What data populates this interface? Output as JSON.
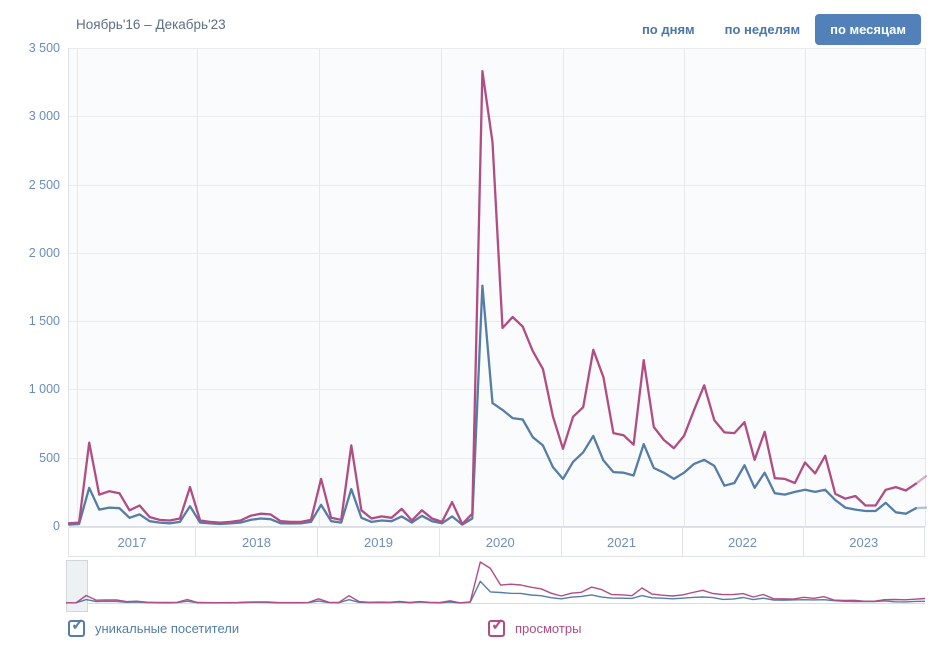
{
  "header": {
    "date_range": "Ноябрь'16 – Декабрь'23",
    "tabs": [
      {
        "label": "по дням",
        "active": false
      },
      {
        "label": "по неделям",
        "active": false
      },
      {
        "label": "по месяцам",
        "active": true
      }
    ]
  },
  "colors": {
    "visitors_line": "#567da7",
    "views_line": "#b04d84",
    "active_tab_bg": "#5181b8",
    "tab_text": "#4a76a8",
    "axis_label": "#6e8fbd",
    "grid_line": "#e9ebef",
    "plot_background": "#fafbfc"
  },
  "legend": {
    "items": [
      {
        "label": "уникальные посетители",
        "checked": true,
        "color": "#567da7"
      },
      {
        "label": "просмотры",
        "checked": true,
        "color": "#b04d84"
      }
    ]
  },
  "chart_data": {
    "type": "line",
    "title": "Ноябрь'16 – Декабрь'23",
    "x_unit": "month",
    "xlabel": "",
    "ylabel": "",
    "ylim": [
      0,
      3500
    ],
    "grid": true,
    "legend_position": "bottom",
    "y_tick_labels_top_to_bottom": [
      "3 500",
      "3 000",
      "2 500",
      "2 000",
      "1 500",
      "1 000",
      "500",
      "0"
    ],
    "x_tick_labels": [
      "2017",
      "2018",
      "2019",
      "2020",
      "2021",
      "2022",
      "2023"
    ],
    "x": [
      "11.2016",
      "12.2016",
      "01.2017",
      "02.2017",
      "03.2017",
      "04.2017",
      "05.2017",
      "06.2017",
      "07.2017",
      "08.2017",
      "09.2017",
      "10.2017",
      "11.2017",
      "12.2017",
      "01.2018",
      "02.2018",
      "03.2018",
      "04.2018",
      "05.2018",
      "06.2018",
      "07.2018",
      "08.2018",
      "09.2018",
      "10.2018",
      "11.2018",
      "12.2018",
      "01.2019",
      "02.2019",
      "03.2019",
      "04.2019",
      "05.2019",
      "06.2019",
      "07.2019",
      "08.2019",
      "09.2019",
      "10.2019",
      "11.2019",
      "12.2019",
      "01.2020",
      "02.2020",
      "03.2020",
      "04.2020",
      "05.2020",
      "06.2020",
      "07.2020",
      "08.2020",
      "09.2020",
      "10.2020",
      "11.2020",
      "12.2020",
      "01.2021",
      "02.2021",
      "03.2021",
      "04.2021",
      "05.2021",
      "06.2021",
      "07.2021",
      "08.2021",
      "09.2021",
      "10.2021",
      "11.2021",
      "12.2021",
      "01.2022",
      "02.2022",
      "03.2022",
      "04.2022",
      "05.2022",
      "06.2022",
      "07.2022",
      "08.2022",
      "09.2022",
      "10.2022",
      "11.2022",
      "12.2022",
      "01.2023",
      "02.2023",
      "03.2023",
      "04.2023",
      "05.2023",
      "06.2023",
      "07.2023",
      "08.2023",
      "09.2023",
      "10.2023",
      "11.2023",
      "12.2023"
    ],
    "series": [
      {
        "name": "уникальные посетители",
        "color": "#567da7",
        "values": [
          10,
          15,
          280,
          120,
          135,
          130,
          60,
          85,
          35,
          25,
          20,
          30,
          145,
          25,
          20,
          15,
          20,
          25,
          45,
          55,
          50,
          20,
          18,
          20,
          30,
          155,
          35,
          25,
          270,
          60,
          30,
          40,
          35,
          70,
          25,
          75,
          35,
          20,
          70,
          10,
          55,
          1760,
          900,
          850,
          790,
          780,
          650,
          590,
          430,
          345,
          470,
          540,
          660,
          480,
          395,
          390,
          370,
          600,
          425,
          390,
          345,
          390,
          455,
          485,
          440,
          295,
          315,
          445,
          280,
          390,
          240,
          230,
          250,
          265,
          250,
          265,
          190,
          135,
          120,
          110,
          110,
          170,
          100,
          90,
          130,
          135
        ]
      },
      {
        "name": "просмотры",
        "color": "#b04d84",
        "values": [
          20,
          25,
          610,
          230,
          255,
          240,
          115,
          150,
          65,
          45,
          40,
          55,
          285,
          40,
          30,
          25,
          30,
          40,
          75,
          90,
          85,
          35,
          30,
          30,
          45,
          345,
          60,
          45,
          590,
          115,
          55,
          70,
          60,
          125,
          40,
          115,
          55,
          30,
          175,
          15,
          90,
          3330,
          2810,
          1450,
          1530,
          1460,
          1280,
          1150,
          800,
          565,
          800,
          870,
          1290,
          1090,
          680,
          665,
          595,
          1215,
          725,
          630,
          570,
          660,
          850,
          1030,
          775,
          685,
          680,
          760,
          485,
          690,
          350,
          345,
          315,
          465,
          385,
          515,
          235,
          200,
          220,
          150,
          150,
          265,
          285,
          260,
          310,
          365
        ]
      }
    ]
  }
}
